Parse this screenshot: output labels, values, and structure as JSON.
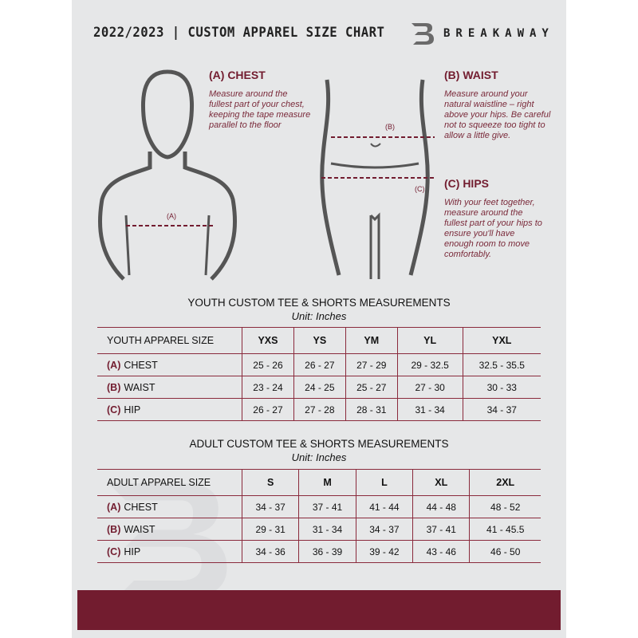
{
  "header": {
    "title": "2022/2023  |  CUSTOM APPAREL SIZE CHART",
    "brand": "BREAKAWAY",
    "logo_letter": "B"
  },
  "chest": {
    "heading": "(A) CHEST",
    "text": "Measure around the fullest part of your chest, keeping the tape measure parallel to the floor",
    "marker": "(A)"
  },
  "waist": {
    "heading": "(B) WAIST",
    "text": "Measure around your natural waistline – right above your hips. Be careful not to squeeze too tight to allow a little give.",
    "marker": "(B)"
  },
  "hips": {
    "heading": "(C) HIPS",
    "text": "With your feet together, measure around the fullest part of your hips to ensure you'll have enough room to move comfortably.",
    "marker": "(C)"
  },
  "youth": {
    "title": "YOUTH CUSTOM TEE & SHORTS MEASUREMENTS",
    "unit": "Unit: Inches",
    "size_label": "YOUTH APPAREL SIZE",
    "sizes": [
      "YXS",
      "YS",
      "YM",
      "YL",
      "YXL"
    ],
    "rows": [
      {
        "code": "(A)",
        "name": "CHEST",
        "values": [
          "25 - 26",
          "26 - 27",
          "27 - 29",
          "29 - 32.5",
          "32.5 - 35.5"
        ]
      },
      {
        "code": "(B)",
        "name": "WAIST",
        "values": [
          "23 - 24",
          "24 - 25",
          "25 - 27",
          "27 - 30",
          "30 - 33"
        ]
      },
      {
        "code": "(C)",
        "name": "HIP",
        "values": [
          "26 - 27",
          "27 - 28",
          "28 - 31",
          "31 - 34",
          "34 - 37"
        ]
      }
    ]
  },
  "adult": {
    "title": "ADULT CUSTOM TEE & SHORTS MEASUREMENTS",
    "unit": "Unit: Inches",
    "size_label": "ADULT APPAREL SIZE",
    "sizes": [
      "S",
      "M",
      "L",
      "XL",
      "2XL"
    ],
    "rows": [
      {
        "code": "(A)",
        "name": "CHEST",
        "values": [
          "34 - 37",
          "37 - 41",
          "41 - 44",
          "44 - 48",
          "48 - 52"
        ]
      },
      {
        "code": "(B)",
        "name": "WAIST",
        "values": [
          "29 - 31",
          "31 - 34",
          "34 - 37",
          "37 - 41",
          "41 - 45.5"
        ]
      },
      {
        "code": "(C)",
        "name": "HIP",
        "values": [
          "34 - 36",
          "36 - 39",
          "39 - 42",
          "43 - 46",
          "46 - 50"
        ]
      }
    ]
  },
  "colors": {
    "accent": "#721c2f",
    "background": "#e6e7e8"
  }
}
